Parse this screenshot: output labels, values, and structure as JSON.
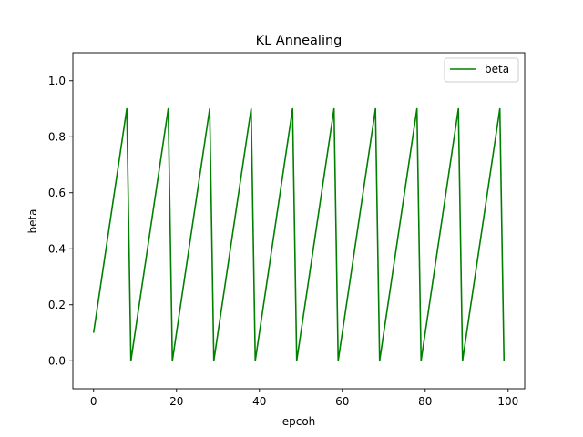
{
  "chart_data": {
    "type": "line",
    "title": "KL Annealing",
    "xlabel": "epcoh",
    "ylabel": "beta",
    "xlim": [
      -5,
      104
    ],
    "ylim": [
      -0.1,
      1.1
    ],
    "xticks": [
      "0",
      "20",
      "40",
      "60",
      "80",
      "100"
    ],
    "yticks": [
      "0.0",
      "0.2",
      "0.4",
      "0.6",
      "0.8",
      "1.0"
    ],
    "grid": false,
    "legend": "top-right",
    "colors": {
      "series": "#008000",
      "axes": "#000000",
      "background": "#ffffff"
    },
    "series": [
      {
        "name": "beta",
        "x": [
          0,
          8,
          9,
          18,
          19,
          28,
          29,
          38,
          39,
          48,
          49,
          58,
          59,
          68,
          69,
          78,
          79,
          88,
          89,
          98,
          99
        ],
        "y": [
          0.1,
          0.9,
          0.0,
          0.9,
          0.0,
          0.9,
          0.0,
          0.9,
          0.0,
          0.9,
          0.0,
          0.9,
          0.0,
          0.9,
          0.0,
          0.9,
          0.0,
          0.9,
          0.0,
          0.9,
          0.0
        ]
      }
    ]
  }
}
